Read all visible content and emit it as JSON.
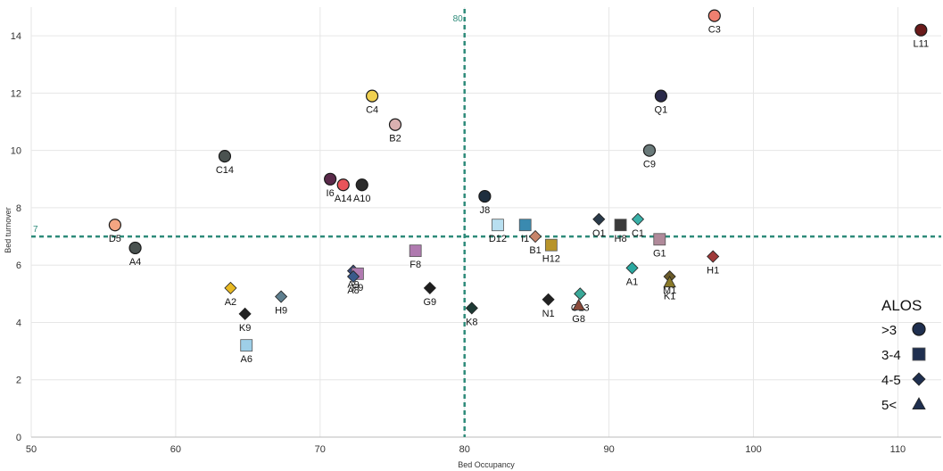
{
  "chart_data": {
    "type": "scatter",
    "title": "",
    "xlabel": "Bed Occupancy",
    "ylabel": "Bed turnover",
    "xlim": [
      50,
      113
    ],
    "ylim": [
      0,
      15
    ],
    "xticks": [
      50,
      60,
      70,
      80,
      90,
      100,
      110
    ],
    "yticks": [
      0,
      2,
      4,
      6,
      8,
      10,
      12,
      14
    ],
    "grid": true,
    "ref_lines": [
      {
        "axis": "x",
        "value": 80,
        "label": "80",
        "color": "#2e8b7a",
        "style": "dashed"
      },
      {
        "axis": "y",
        "value": 7,
        "label": "7",
        "color": "#2e8b7a",
        "style": "dashed"
      }
    ],
    "legend": {
      "title": "ALOS",
      "placement": "bottom-right",
      "entries": [
        {
          "label": ">3",
          "marker": "circle"
        },
        {
          "label": "3-4",
          "marker": "square"
        },
        {
          "label": "4-5",
          "marker": "diamond"
        },
        {
          "label": "5<",
          "marker": "triangle"
        }
      ]
    },
    "points": [
      {
        "label": "D5",
        "x": 55.8,
        "y": 7.4,
        "marker": "circle",
        "color": "#f4a582"
      },
      {
        "label": "A4",
        "x": 57.2,
        "y": 6.6,
        "marker": "circle",
        "color": "#4a5250"
      },
      {
        "label": "C14",
        "x": 63.4,
        "y": 9.8,
        "marker": "circle",
        "color": "#4a5250"
      },
      {
        "label": "A2",
        "x": 63.8,
        "y": 5.2,
        "marker": "diamond",
        "color": "#e8b923"
      },
      {
        "label": "K9",
        "x": 64.8,
        "y": 4.3,
        "marker": "diamond",
        "color": "#222222"
      },
      {
        "label": "A6",
        "x": 64.9,
        "y": 3.2,
        "marker": "square",
        "color": "#9ecfe8"
      },
      {
        "label": "H9",
        "x": 67.3,
        "y": 4.9,
        "marker": "diamond",
        "color": "#5e7f8f"
      },
      {
        "label": "I6",
        "x": 70.7,
        "y": 9.0,
        "marker": "circle",
        "color": "#5a2a4a"
      },
      {
        "label": "A14",
        "x": 71.6,
        "y": 8.8,
        "marker": "circle",
        "color": "#e8545a"
      },
      {
        "label": "A10",
        "x": 72.9,
        "y": 8.8,
        "marker": "circle",
        "color": "#2b2b2b"
      },
      {
        "label": "A9",
        "x": 72.3,
        "y": 5.8,
        "marker": "diamond",
        "color": "#3a4a7a"
      },
      {
        "label": "F9",
        "x": 72.6,
        "y": 5.7,
        "marker": "square",
        "color": "#b07ab0"
      },
      {
        "label": "A8",
        "x": 72.3,
        "y": 5.6,
        "marker": "diamond",
        "color": "#3a5a8a"
      },
      {
        "label": "C4",
        "x": 73.6,
        "y": 11.9,
        "marker": "circle",
        "color": "#f0d050"
      },
      {
        "label": "B2",
        "x": 75.2,
        "y": 10.9,
        "marker": "circle",
        "color": "#dab0b0"
      },
      {
        "label": "F8",
        "x": 76.6,
        "y": 6.5,
        "marker": "square",
        "color": "#b07ab0"
      },
      {
        "label": "G9",
        "x": 77.6,
        "y": 5.2,
        "marker": "diamond",
        "color": "#1e1e1e"
      },
      {
        "label": "K8",
        "x": 80.5,
        "y": 4.5,
        "marker": "diamond",
        "color": "#1e3a35"
      },
      {
        "label": "J8",
        "x": 81.4,
        "y": 8.4,
        "marker": "circle",
        "color": "#1f2f3f"
      },
      {
        "label": "D12",
        "x": 82.3,
        "y": 7.4,
        "marker": "square",
        "color": "#b8dff0"
      },
      {
        "label": "I1",
        "x": 84.2,
        "y": 7.4,
        "marker": "square",
        "color": "#3a8ab0"
      },
      {
        "label": "B1",
        "x": 84.9,
        "y": 7.0,
        "marker": "diamond",
        "color": "#c8846a"
      },
      {
        "label": "H12",
        "x": 86.0,
        "y": 6.7,
        "marker": "square",
        "color": "#b8942a"
      },
      {
        "label": "N1",
        "x": 85.8,
        "y": 4.8,
        "marker": "diamond",
        "color": "#222222"
      },
      {
        "label": "O13",
        "x": 88.0,
        "y": 5.0,
        "marker": "diamond",
        "color": "#3aa898"
      },
      {
        "label": "G8",
        "x": 87.9,
        "y": 4.6,
        "marker": "triangle",
        "color": "#8b4a3a"
      },
      {
        "label": "O1",
        "x": 89.3,
        "y": 7.6,
        "marker": "diamond",
        "color": "#2a3a4a"
      },
      {
        "label": "H8",
        "x": 90.8,
        "y": 7.4,
        "marker": "square",
        "color": "#3a3a3a"
      },
      {
        "label": "C1",
        "x": 92.0,
        "y": 7.6,
        "marker": "diamond",
        "color": "#3ab0a8"
      },
      {
        "label": "A1",
        "x": 91.6,
        "y": 5.9,
        "marker": "diamond",
        "color": "#2aa8a0"
      },
      {
        "label": "G1",
        "x": 93.5,
        "y": 6.9,
        "marker": "square",
        "color": "#b08a9a"
      },
      {
        "label": "C9",
        "x": 92.8,
        "y": 10.0,
        "marker": "circle",
        "color": "#6a7a7a"
      },
      {
        "label": "Q1",
        "x": 93.6,
        "y": 11.9,
        "marker": "circle",
        "color": "#2a2a4a"
      },
      {
        "label": "M1",
        "x": 94.2,
        "y": 5.6,
        "marker": "diamond",
        "color": "#6a5a2a"
      },
      {
        "label": "K1",
        "x": 94.2,
        "y": 5.4,
        "marker": "triangle",
        "color": "#8a7a2a"
      },
      {
        "label": "C3",
        "x": 97.3,
        "y": 14.7,
        "marker": "circle",
        "color": "#f08070"
      },
      {
        "label": "H1",
        "x": 97.2,
        "y": 6.3,
        "marker": "diamond",
        "color": "#a03a3a"
      },
      {
        "label": "L11",
        "x": 111.6,
        "y": 14.2,
        "marker": "circle",
        "color": "#6a1a1a"
      }
    ]
  }
}
